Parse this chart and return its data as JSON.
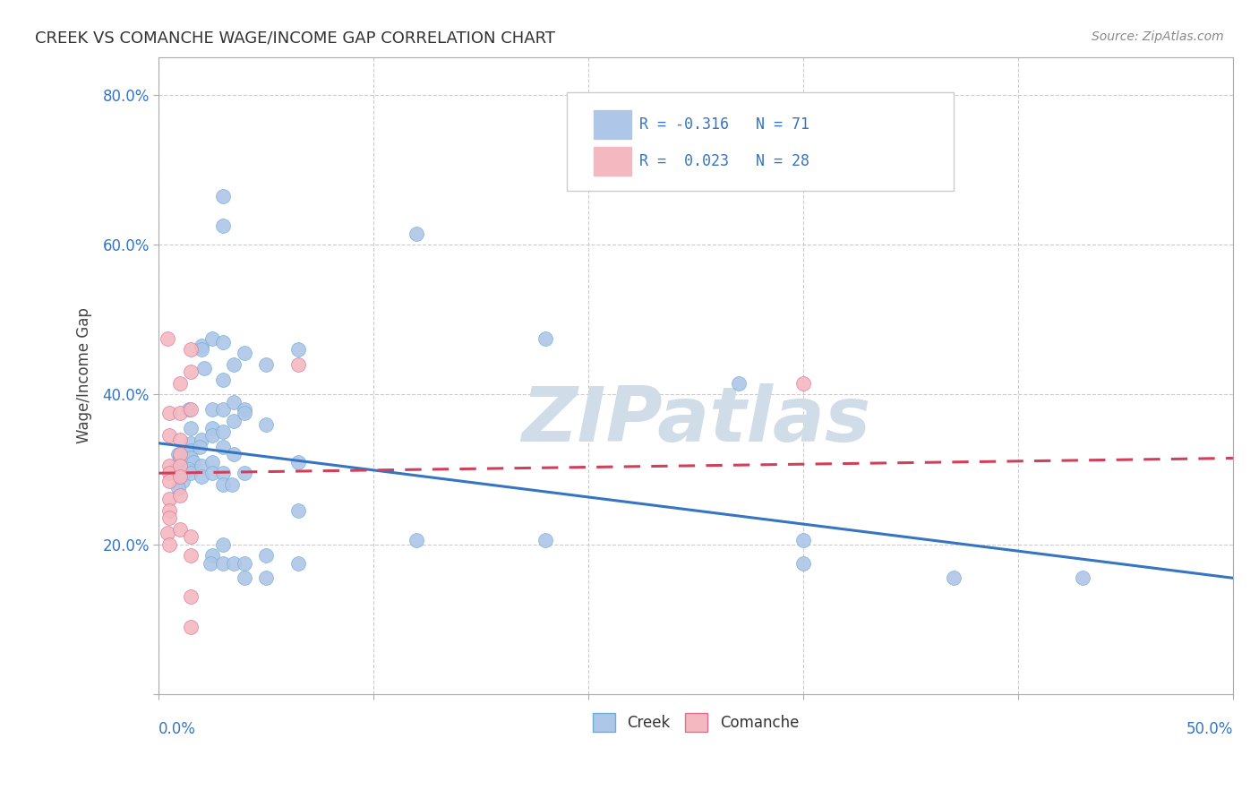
{
  "title": "CREEK VS COMANCHE WAGE/INCOME GAP CORRELATION CHART",
  "source": "Source: ZipAtlas.com",
  "ylabel": "Wage/Income Gap",
  "xlim": [
    0.0,
    0.5
  ],
  "ylim": [
    0.0,
    0.85
  ],
  "creek_fill": "#aec6e8",
  "creek_edge": "#6baed6",
  "comanche_fill": "#f4b8c1",
  "comanche_edge": "#e07090",
  "trend_creek_color": "#3575c2",
  "trend_comanche_color": "#d0405a",
  "watermark": "ZIPatlas",
  "watermark_color": "#d0dce8",
  "background_color": "#ffffff",
  "grid_color": "#cccccc",
  "creek_trend_start_y": 0.335,
  "creek_trend_end_y": 0.155,
  "comanche_trend_start_y": 0.295,
  "comanche_trend_end_y": 0.315,
  "creek_points": [
    [
      0.008,
      0.305
    ],
    [
      0.009,
      0.32
    ],
    [
      0.01,
      0.3
    ],
    [
      0.01,
      0.315
    ],
    [
      0.01,
      0.295
    ],
    [
      0.01,
      0.29
    ],
    [
      0.011,
      0.285
    ],
    [
      0.009,
      0.275
    ],
    [
      0.014,
      0.38
    ],
    [
      0.015,
      0.355
    ],
    [
      0.015,
      0.335
    ],
    [
      0.015,
      0.325
    ],
    [
      0.015,
      0.315
    ],
    [
      0.016,
      0.31
    ],
    [
      0.014,
      0.3
    ],
    [
      0.015,
      0.295
    ],
    [
      0.02,
      0.465
    ],
    [
      0.02,
      0.46
    ],
    [
      0.021,
      0.435
    ],
    [
      0.02,
      0.34
    ],
    [
      0.019,
      0.33
    ],
    [
      0.02,
      0.305
    ],
    [
      0.02,
      0.29
    ],
    [
      0.025,
      0.475
    ],
    [
      0.025,
      0.38
    ],
    [
      0.025,
      0.355
    ],
    [
      0.025,
      0.345
    ],
    [
      0.025,
      0.31
    ],
    [
      0.025,
      0.295
    ],
    [
      0.025,
      0.185
    ],
    [
      0.024,
      0.175
    ],
    [
      0.03,
      0.665
    ],
    [
      0.03,
      0.625
    ],
    [
      0.03,
      0.47
    ],
    [
      0.03,
      0.42
    ],
    [
      0.03,
      0.38
    ],
    [
      0.03,
      0.35
    ],
    [
      0.03,
      0.33
    ],
    [
      0.03,
      0.295
    ],
    [
      0.03,
      0.28
    ],
    [
      0.03,
      0.2
    ],
    [
      0.03,
      0.175
    ],
    [
      0.035,
      0.44
    ],
    [
      0.035,
      0.39
    ],
    [
      0.035,
      0.365
    ],
    [
      0.035,
      0.32
    ],
    [
      0.034,
      0.28
    ],
    [
      0.035,
      0.175
    ],
    [
      0.04,
      0.455
    ],
    [
      0.04,
      0.38
    ],
    [
      0.04,
      0.375
    ],
    [
      0.04,
      0.295
    ],
    [
      0.04,
      0.175
    ],
    [
      0.04,
      0.155
    ],
    [
      0.05,
      0.44
    ],
    [
      0.05,
      0.36
    ],
    [
      0.05,
      0.185
    ],
    [
      0.05,
      0.155
    ],
    [
      0.065,
      0.46
    ],
    [
      0.065,
      0.31
    ],
    [
      0.065,
      0.245
    ],
    [
      0.065,
      0.175
    ],
    [
      0.12,
      0.615
    ],
    [
      0.12,
      0.205
    ],
    [
      0.18,
      0.475
    ],
    [
      0.18,
      0.205
    ],
    [
      0.27,
      0.415
    ],
    [
      0.3,
      0.205
    ],
    [
      0.3,
      0.175
    ],
    [
      0.37,
      0.155
    ],
    [
      0.43,
      0.155
    ]
  ],
  "comanche_points": [
    [
      0.004,
      0.475
    ],
    [
      0.005,
      0.375
    ],
    [
      0.005,
      0.345
    ],
    [
      0.005,
      0.305
    ],
    [
      0.005,
      0.295
    ],
    [
      0.005,
      0.285
    ],
    [
      0.005,
      0.26
    ],
    [
      0.005,
      0.245
    ],
    [
      0.005,
      0.235
    ],
    [
      0.004,
      0.215
    ],
    [
      0.005,
      0.2
    ],
    [
      0.01,
      0.415
    ],
    [
      0.01,
      0.375
    ],
    [
      0.01,
      0.34
    ],
    [
      0.01,
      0.32
    ],
    [
      0.01,
      0.305
    ],
    [
      0.01,
      0.29
    ],
    [
      0.01,
      0.265
    ],
    [
      0.01,
      0.22
    ],
    [
      0.015,
      0.46
    ],
    [
      0.015,
      0.43
    ],
    [
      0.015,
      0.38
    ],
    [
      0.015,
      0.21
    ],
    [
      0.015,
      0.185
    ],
    [
      0.015,
      0.13
    ],
    [
      0.015,
      0.09
    ],
    [
      0.065,
      0.44
    ],
    [
      0.3,
      0.415
    ]
  ]
}
